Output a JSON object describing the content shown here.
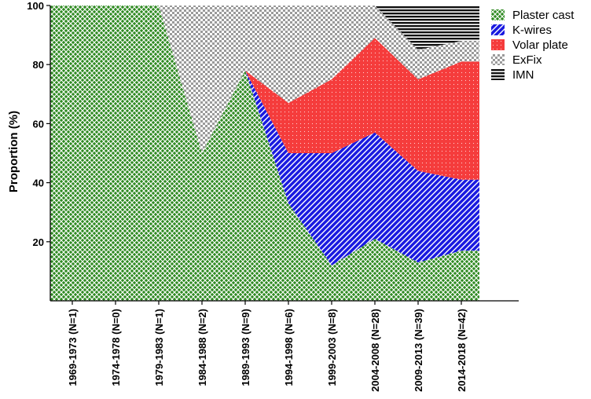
{
  "chart_data": {
    "type": "area",
    "stacked": true,
    "ylabel": "Proportion  (%)",
    "xlabel": "",
    "ylim": [
      0,
      100
    ],
    "yticks": [
      20,
      40,
      60,
      80,
      100
    ],
    "legend_position": "top-right",
    "categories": [
      "1969-1973 (N=1)",
      "1974-1978 (N=0)",
      "1979-1983 (N=1)",
      "1984-1988 (N=2)",
      "1989-1993 (N=9)",
      "1994-1998 (N=6)",
      "1999-2003 (N=8)",
      "2004-2008 (N=28)",
      "2009-2013 (N=39)",
      "2014-2018 (N=42)"
    ],
    "series": [
      {
        "name": "Plaster cast",
        "color": "#2e7d1f",
        "pattern": "crosshatch-green",
        "values": [
          100,
          100,
          100,
          50,
          78,
          33,
          12,
          21,
          13,
          17
        ]
      },
      {
        "name": "K-wires",
        "color": "#1a1adb",
        "pattern": "diagonal-blue",
        "values": [
          0,
          0,
          0,
          0,
          0,
          17,
          38,
          36,
          31,
          24
        ]
      },
      {
        "name": "Volar plate",
        "color": "#f53c3c",
        "pattern": "dots-red",
        "values": [
          0,
          0,
          0,
          0,
          0,
          17,
          25,
          32,
          31,
          40
        ]
      },
      {
        "name": "ExFix",
        "color": "#aaaaaa",
        "pattern": "checker-gray",
        "values": [
          0,
          0,
          0,
          50,
          22,
          33,
          25,
          11,
          10,
          7
        ]
      },
      {
        "name": "IMN",
        "color": "#111111",
        "pattern": "hlines-black",
        "values": [
          0,
          0,
          0,
          0,
          0,
          0,
          0,
          0,
          15,
          12
        ]
      }
    ]
  }
}
